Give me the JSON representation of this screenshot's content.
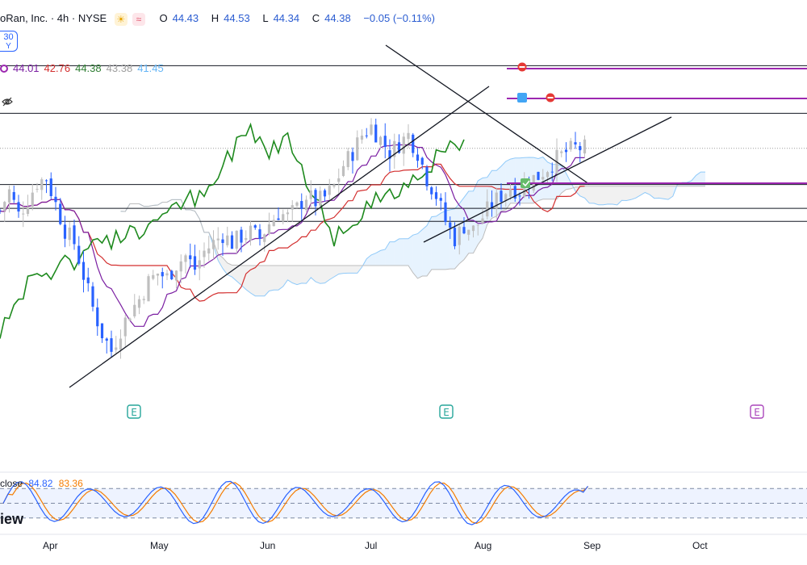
{
  "header": {
    "symbol_title": "oRan, Inc. · 4h · NYSE",
    "o_label": "O",
    "o_value": "44.43",
    "h_label": "H",
    "h_value": "44.53",
    "l_label": "L",
    "l_value": "44.34",
    "c_label": "C",
    "c_value": "44.38",
    "change": "−0.05 (−0.11%)"
  },
  "badge": {
    "line1": "30",
    "line2": "Y"
  },
  "ichimoku": {
    "values": [
      "44.01",
      "42.76",
      "44.38",
      "43.38",
      "41.45"
    ],
    "colors": [
      "#7b1fa2",
      "#d32f2f",
      "#2e7d32",
      "#9e9e9e",
      "#64b5f6"
    ]
  },
  "oscillator": {
    "label": "close",
    "k": "84.82",
    "d": "83.36",
    "k_color": "#2962ff",
    "d_color": "#f57c00"
  },
  "brand": "iew",
  "earnings_label": "E",
  "colors": {
    "up": "#bfbfbf",
    "down": "#2962ff",
    "tenkan": "#7b1fa2",
    "kijun": "#d32f2f",
    "chikou": "#1e8a1e",
    "cloud_a": "#90caf9",
    "cloud_b": "#bdbdbd",
    "alert": "#9c27b0"
  },
  "chart_data": {
    "type": "candlestick",
    "title": "oRan, Inc. · 4h · NYSE",
    "x_ticks": [
      "Apr",
      "May",
      "Jun",
      "Jul",
      "Aug",
      "Sep",
      "Oct"
    ],
    "y_range": [
      33.5,
      49.0
    ],
    "price_series": [
      [
        0,
        41.5
      ],
      [
        2,
        42.4
      ],
      [
        4,
        41.3
      ],
      [
        6,
        42.0
      ],
      [
        8,
        42.8
      ],
      [
        10,
        43.0
      ],
      [
        12,
        41.8
      ],
      [
        14,
        40.6
      ],
      [
        16,
        40.0
      ],
      [
        18,
        38.5
      ],
      [
        20,
        37.0
      ],
      [
        22,
        35.8
      ],
      [
        24,
        35.0
      ],
      [
        26,
        36.0
      ],
      [
        28,
        36.8
      ],
      [
        30,
        37.4
      ],
      [
        32,
        38.2
      ],
      [
        34,
        38.6
      ],
      [
        36,
        38.4
      ],
      [
        38,
        39.0
      ],
      [
        40,
        39.4
      ],
      [
        42,
        38.8
      ],
      [
        44,
        39.6
      ],
      [
        46,
        40.0
      ],
      [
        48,
        40.4
      ],
      [
        50,
        40.0
      ],
      [
        52,
        40.3
      ],
      [
        54,
        40.5
      ],
      [
        56,
        40.2
      ],
      [
        58,
        40.9
      ],
      [
        60,
        41.4
      ],
      [
        62,
        41.2
      ],
      [
        64,
        41.6
      ],
      [
        66,
        42.2
      ],
      [
        68,
        41.9
      ],
      [
        70,
        42.1
      ],
      [
        72,
        42.6
      ],
      [
        74,
        43.6
      ],
      [
        76,
        44.2
      ],
      [
        78,
        45.0
      ],
      [
        80,
        45.4
      ],
      [
        82,
        44.8
      ],
      [
        84,
        44.2
      ],
      [
        86,
        44.6
      ],
      [
        88,
        45.0
      ],
      [
        90,
        44.2
      ],
      [
        92,
        43.0
      ],
      [
        94,
        42.2
      ],
      [
        96,
        41.0
      ],
      [
        98,
        40.2
      ],
      [
        100,
        40.8
      ],
      [
        102,
        40.6
      ],
      [
        104,
        41.2
      ],
      [
        106,
        41.8
      ],
      [
        108,
        42.2
      ],
      [
        110,
        42.6
      ],
      [
        112,
        42.4
      ],
      [
        114,
        42.9
      ],
      [
        116,
        43.1
      ],
      [
        118,
        43.5
      ],
      [
        120,
        43.9
      ],
      [
        122,
        44.2
      ],
      [
        124,
        44.4
      ],
      [
        126,
        44.38
      ]
    ],
    "tenkan_sen": "44.01",
    "kijun_sen": "42.76",
    "chikou_span": "44.38",
    "senkou_a": "43.38",
    "senkou_b": "41.45",
    "horizontal_levels": [
      48.2,
      46.0,
      42.7,
      41.6,
      41.0
    ],
    "stochastic": {
      "k": 84.82,
      "d": 83.36,
      "bands": [
        80,
        50,
        20
      ]
    }
  }
}
